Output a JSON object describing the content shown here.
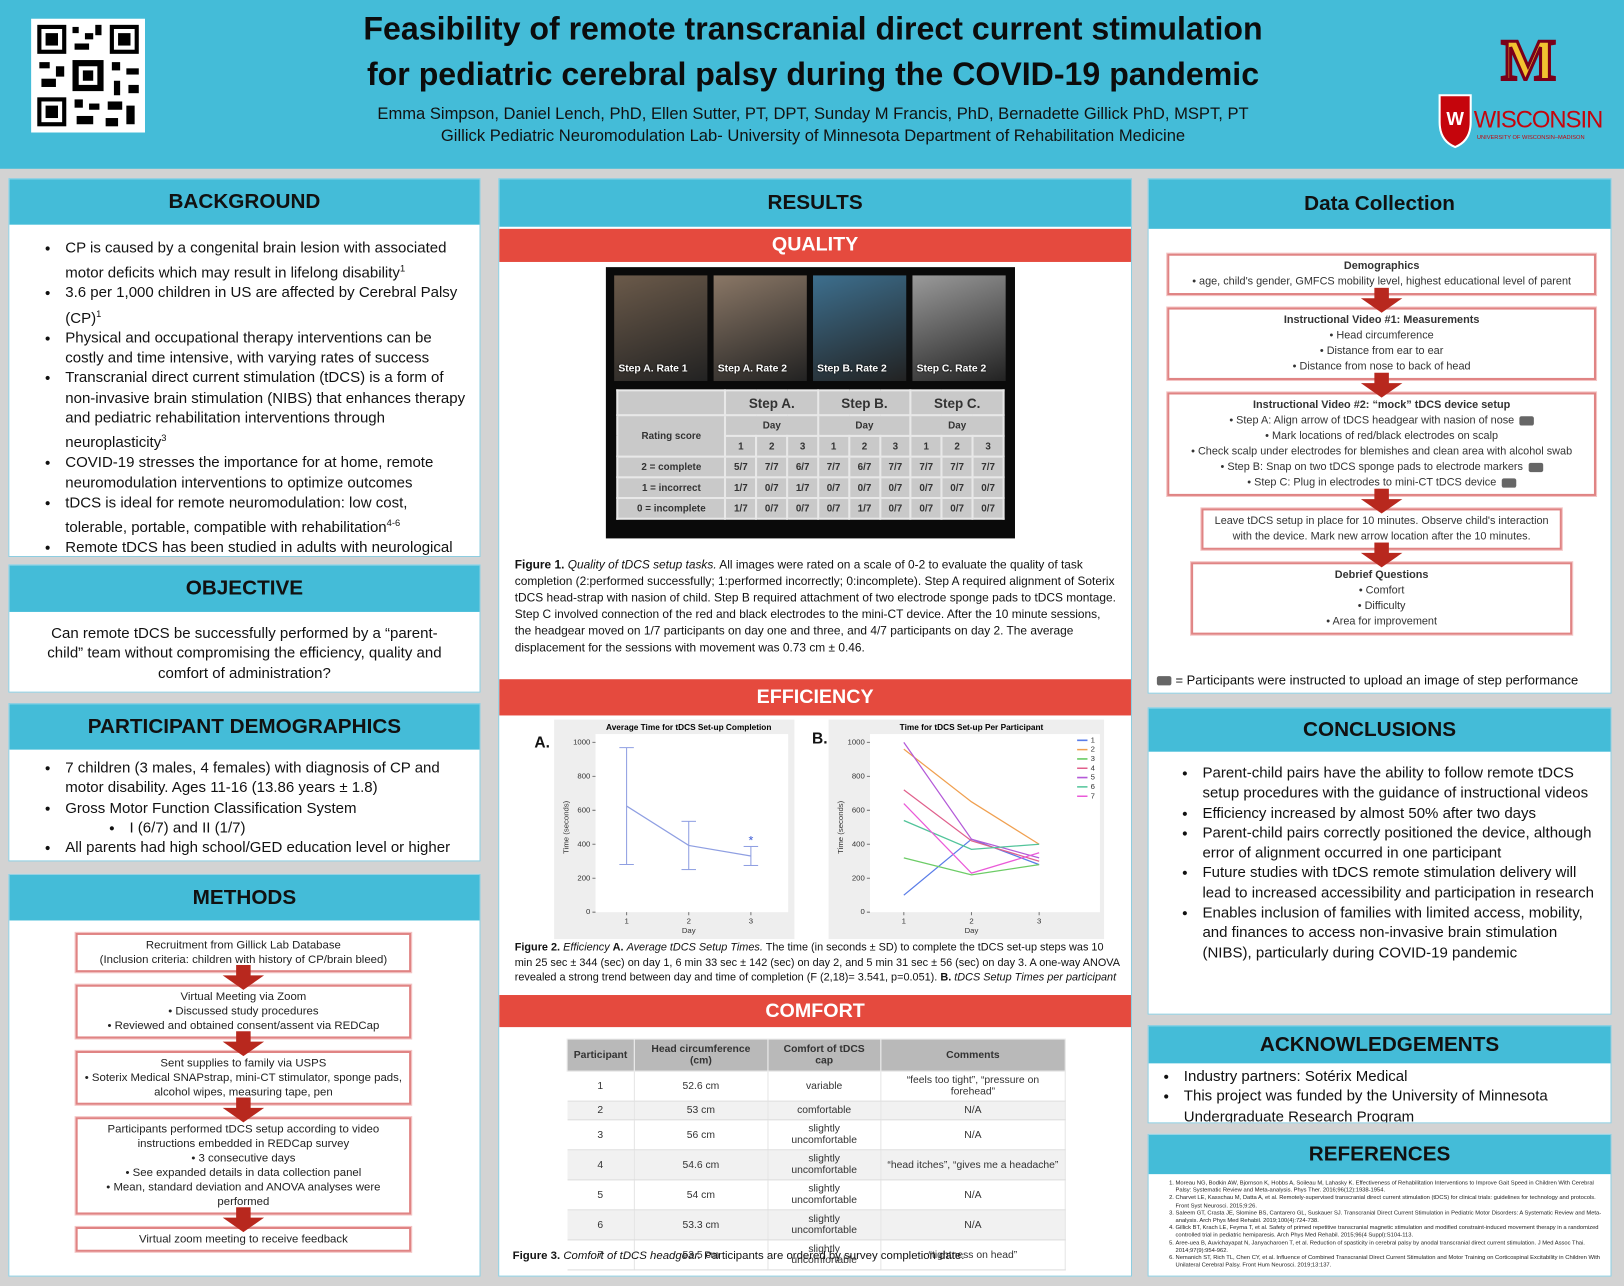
{
  "header": {
    "title_lines": [
      "Feasibility of remote transcranial direct current stimulation",
      "for pediatric cerebral palsy during the COVID-19 pandemic"
    ],
    "authors": "Emma Simpson, Daniel Lench, PhD, Ellen Sutter, PT, DPT, Sunday M Francis, PhD, Bernadette Gillick PhD, MSPT, PT",
    "affiliation": "Gillick Pediatric Neuromodulation Lab- University of Minnesota Department of Rehabilitation Medicine",
    "logo_minnesota": "M",
    "logo_wisconsin": "WISCONSIN",
    "logo_wisconsin_sub": "UNIVERSITY OF WISCONSIN–MADISON"
  },
  "background": {
    "heading": "BACKGROUND",
    "items": [
      {
        "text": "CP is caused by a congenital brain lesion with associated motor deficits which may result in lifelong disability",
        "sup": "1"
      },
      {
        "text": "3.6 per 1,000 children in US are affected by Cerebral Palsy (CP)",
        "sup": "1"
      },
      "Physical and occupational therapy interventions can be costly and time intensive, with varying rates of success",
      {
        "text": "Transcranial direct current stimulation (tDCS) is a form of non-invasive brain stimulation (NIBS) that enhances therapy and pediatric rehabilitation interventions through neuroplasticity",
        "sup": "3"
      },
      "COVID-19 stresses the importance for at home, remote neuromodulation interventions to optimize outcomes",
      {
        "text": "tDCS is ideal for remote neuromodulation: low cost, tolerable, portable, compatible with rehabilitation",
        "sup": "4-6"
      },
      "Remote tDCS has been studied in adults with neurological disorders"
    ]
  },
  "objective": {
    "heading": "OBJECTIVE",
    "text": "Can remote tDCS be successfully performed by a “parent-child” team without compromising the efficiency, quality and comfort of administration?"
  },
  "demographics": {
    "heading": "PARTICIPANT DEMOGRAPHICS",
    "items": [
      "7 children (3 males, 4 females) with diagnosis of CP and motor disability. Ages 11-16 (13.86 years ± 1.8)",
      "Gross Motor Function Classification System",
      {
        "text": "I (6/7) and II (1/7)",
        "level": 2
      },
      "All parents had high school/GED education level or higher"
    ]
  },
  "methods": {
    "heading": "METHODS",
    "boxes": [
      {
        "lines": [
          "Recruitment from Gillick Lab Database",
          "(Inclusion criteria: children with history of CP/brain bleed)"
        ]
      },
      {
        "lines": [
          "Virtual Meeting via Zoom"
        ],
        "bullets": [
          "Discussed study procedures",
          "Reviewed and obtained consent/assent via REDCap"
        ]
      },
      {
        "lines": [
          "Sent supplies to family via USPS"
        ],
        "bullets": [
          "Soterix Medical SNAPstrap, mini-CT stimulator, sponge pads, alcohol wipes, measuring tape, pen"
        ]
      },
      {
        "lines": [
          "Participants performed tDCS setup according to video instructions embedded in REDCap survey"
        ],
        "bullets": [
          "3 consecutive days",
          "See expanded details in data collection panel",
          "Mean, standard deviation and ANOVA analyses were performed"
        ]
      },
      {
        "lines": [
          "Virtual zoom meeting to receive feedback"
        ]
      }
    ]
  },
  "results": {
    "heading": "RESULTS",
    "quality": {
      "heading": "QUALITY",
      "photo_labels": [
        "Step A. Rate 1",
        "Step A. Rate 2",
        "Step B. Rate 2",
        "Step C. Rate 2"
      ],
      "table": {
        "steps": [
          "Step A.",
          "Step B.",
          "Step C."
        ],
        "day_label": "Day",
        "rating_label": "Rating score",
        "days": [
          1,
          2,
          3
        ],
        "rows": [
          {
            "label": "2 = complete",
            "values": [
              "5/7",
              "7/7",
              "6/7",
              "7/7",
              "6/7",
              "7/7",
              "7/7",
              "7/7",
              "7/7"
            ]
          },
          {
            "label": "1 = incorrect",
            "values": [
              "1/7",
              "0/7",
              "1/7",
              "0/7",
              "0/7",
              "0/7",
              "0/7",
              "0/7",
              "0/7"
            ]
          },
          {
            "label": "0 = incomplete",
            "values": [
              "1/7",
              "0/7",
              "0/7",
              "0/7",
              "1/7",
              "0/7",
              "0/7",
              "0/7",
              "0/7"
            ]
          }
        ]
      },
      "caption": [
        {
          "text": "Figure 1.",
          "style": "bold"
        },
        {
          "text": "Quality of tDCS setup tasks.",
          "style": "italic"
        },
        {
          "text": "All images were rated on a scale of 0-2 to evaluate the quality of task completion (2:performed successfully; 1:performed incorrectly; 0:incomplete). Step A required alignment of Soterix tDCS head-strap with nasion of child. Step B required attachment of two electrode sponge pads to tDCS montage. Step C involved connection of the red and black electrodes to the mini-CT device. After the 10 minute sessions, the headgear moved on 1/7 participants on day one and three, and 4/7 participants on day 2.  The average displacement for the sessions with movement was 0.73 cm ± 0.46."
        }
      ]
    },
    "efficiency": {
      "heading": "EFFICIENCY",
      "panel_labels": [
        "A.",
        "B."
      ],
      "caption": [
        {
          "text": "Figure 2.",
          "style": "bold"
        },
        {
          "text": "Efficiency",
          "style": "italic"
        },
        {
          "text": "A.",
          "style": "bold"
        },
        {
          "text": "Average tDCS Setup Times.",
          "style": "italic"
        },
        {
          "text": "The time (in seconds ± SD) to complete the tDCS set-up steps was 10 min 25 sec ± 344 (sec) on day 1, 6 min 33 sec ± 142 (sec) on day 2, and 5 min 31 sec ± 56 (sec) on day 3. A one-way ANOVA revealed a strong trend between day and time of completion (F (2,18)= 3.541, p=0.051)."
        },
        {
          "text": "B.",
          "style": "bold"
        },
        {
          "text": "tDCS Setup Times per participant",
          "style": "italic"
        }
      ]
    },
    "comfort": {
      "heading": "COMFORT",
      "table": {
        "columns": [
          "Participant",
          "Head circumference (cm)",
          "Comfort of tDCS cap",
          "Comments"
        ],
        "rows": [
          [
            1,
            "52.6 cm",
            "variable",
            "“feels too tight”, “pressure on forehead”"
          ],
          [
            2,
            "53 cm",
            "comfortable",
            "N/A"
          ],
          [
            3,
            "56 cm",
            "slightly uncomfortable",
            "N/A"
          ],
          [
            4,
            "54.6 cm",
            "slightly uncomfortable",
            "“head itches”, “gives me a headache”"
          ],
          [
            5,
            "54 cm",
            "slightly uncomfortable",
            "N/A"
          ],
          [
            6,
            "53.3 cm",
            "slightly uncomfortable",
            "N/A"
          ],
          [
            7,
            "53.5 cm",
            "slightly uncomfortable",
            "“tightness on head”"
          ]
        ]
      },
      "caption": [
        {
          "text": "Figure 3.",
          "style": "bold"
        },
        {
          "text": "Comfort of tDCS headgear.",
          "style": "italic"
        },
        {
          "text": "Participants are ordered by survey completion date."
        }
      ]
    }
  },
  "data_collection": {
    "heading": "Data Collection",
    "boxes": [
      {
        "title": "Demographics",
        "bullets": [
          "age, child's gender, GMFCS mobility level, highest educational level of parent"
        ]
      },
      {
        "title": "Instructional Video #1: Measurements",
        "bullets": [
          "Head circumference",
          "Distance from ear to ear",
          "Distance from nose to back of head"
        ]
      },
      {
        "title": "Instructional Video #2: “mock” tDCS device setup",
        "bullets": [
          {
            "text": "Step A: Align arrow of tDCS headgear with nasion of nose",
            "photo": true
          },
          "Mark locations of red/black electrodes on scalp",
          "Check scalp under electrodes for blemishes and clean area with alcohol swab",
          {
            "text": "Step B: Snap on two tDCS sponge pads to electrode markers",
            "photo": true
          },
          {
            "text": "Step C: Plug in electrodes to mini-CT tDCS device",
            "photo": true
          }
        ]
      },
      {
        "lines": [
          "Leave tDCS setup in place for 10 minutes. Observe child's interaction with the device. Mark new arrow location after the 10 minutes."
        ]
      },
      {
        "title": "Debrief Questions",
        "bullets": [
          "Comfort",
          "Difficulty",
          "Area for improvement"
        ]
      }
    ],
    "note": "= Participants were instructed to upload an image of step performance"
  },
  "conclusions": {
    "heading": "CONCLUSIONS",
    "items": [
      "Parent-child pairs have the ability to follow remote tDCS setup procedures with the guidance of instructional videos",
      "Efficiency increased by almost 50% after two days",
      "Parent-child pairs correctly positioned the device, although error of alignment occurred in one participant",
      "Future studies with tDCS remote stimulation delivery will lead to increased accessibility and participation in research",
      "Enables inclusion of families with limited access, mobility, and finances to access non-invasive brain stimulation (NIBS), particularly during COVID-19 pandemic"
    ]
  },
  "acknowledgements": {
    "heading": "ACKNOWLEDGEMENTS",
    "items": [
      "Industry partners: Sotérix Medical",
      "This project was funded by the University of Minnesota Undergraduate Research Program"
    ]
  },
  "references": {
    "heading": "REFERENCES",
    "items": [
      "Moreau NG, Bodkin AW, Bjornson K, Hobbs A, Soileau M, Lahasky K. Effectiveness of Rehabilitation Interventions to Improve Gait Speed in Children With Cerebral Palsy: Systematic Review and Meta-analysis. Phys Ther. 2016;96(12):1938-1954.",
      "Charvet LE, Kasschau M, Datta A, et al. Remotely-supervised transcranial direct current stimulation (tDCS) for clinical trials: guidelines for technology and protocols. Front Syst Neurosci. 2015;9:26.",
      "Saleem GT, Crasta JE, Slomine BS, Cantarero GL, Suskauer SJ. Transcranial Direct Current Stimulation in Pediatric Motor Disorders: A Systematic Review and Meta-analysis. Arch Phys Med Rehabil. 2019;100(4):724-738.",
      "Gillick BT, Krach LE, Feyma T, et al. Safety of primed repetitive transcranial magnetic stimulation and modified constraint-induced movement therapy in a randomized controlled trial in pediatric hemiparesis. Arch Phys Med Rehabil. 2015;96(4 Suppl):S104-113.",
      "Aree-uea B, Auvichayapat N, Janyacharoen T, et al. Reduction of spasticity in cerebral palsy by anodal transcranial direct current stimulation. J Med Assoc Thai. 2014;97(9):954-962.",
      "Nemanich ST, Rich TL, Chen CY, et al. Influence of Combined Transcranial Direct Current Stimulation and Motor Training on Corticospinal Excitability in Children With Unilateral Cerebral Palsy. Front Hum Neurosci. 2019;13:137."
    ]
  },
  "chart_data": [
    {
      "type": "line",
      "title": "Average Time for tDCS Set-up Completion",
      "x_label": "Day",
      "y_label": "Time (seconds)",
      "x": [
        1,
        2,
        3
      ],
      "xlim": [
        0.5,
        3.5
      ],
      "xticks": [
        1,
        2,
        3
      ],
      "ylim": [
        0,
        1000
      ],
      "yticks": [
        0,
        200,
        400,
        600,
        800,
        1000
      ],
      "series": [
        {
          "color": "#8f9fe2",
          "values": [
            625,
            393,
            331
          ],
          "errors": [
            344,
            142,
            56
          ]
        }
      ],
      "annotation": "*"
    },
    {
      "type": "line",
      "title": "Time for tDCS Set-up Per Participant",
      "x_label": "Day",
      "y_label": "Time (seconds)",
      "x": [
        1,
        2,
        3
      ],
      "xlim": [
        0.5,
        3.5
      ],
      "xticks": [
        1,
        2,
        3
      ],
      "ylim": [
        0,
        1000
      ],
      "yticks": [
        0,
        200,
        400,
        600,
        800,
        1000
      ],
      "legend": "top-right",
      "series": [
        {
          "name": "1",
          "color": "#5a7de8",
          "values": [
            100,
            430,
            280
          ]
        },
        {
          "name": "2",
          "color": "#f0a050",
          "values": [
            960,
            650,
            400
          ]
        },
        {
          "name": "3",
          "color": "#6ccc66",
          "values": [
            320,
            220,
            280
          ]
        },
        {
          "name": "4",
          "color": "#e0608c",
          "values": [
            720,
            420,
            300
          ]
        },
        {
          "name": "5",
          "color": "#b45ad8",
          "values": [
            1000,
            430,
            320
          ]
        },
        {
          "name": "6",
          "color": "#52c49a",
          "values": [
            540,
            370,
            400
          ]
        },
        {
          "name": "7",
          "color": "#ea5ad8",
          "values": [
            640,
            230,
            350
          ]
        }
      ]
    }
  ]
}
